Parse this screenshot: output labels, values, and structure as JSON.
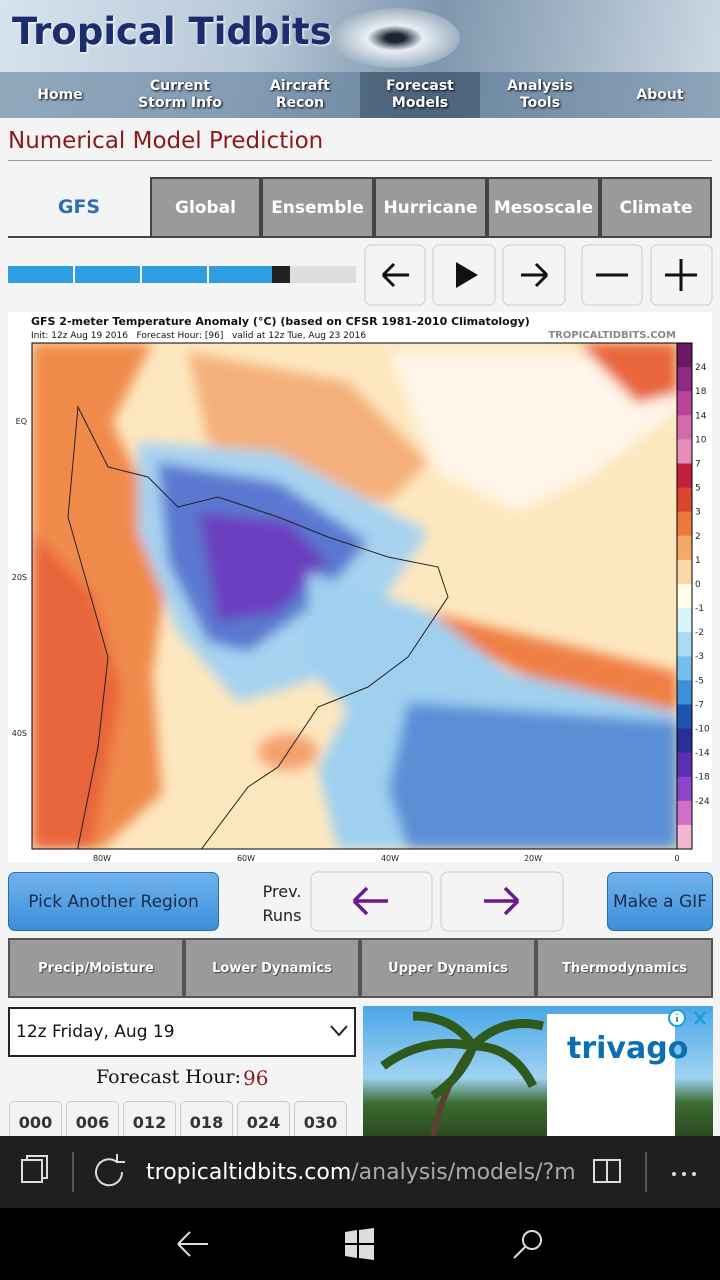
{
  "header": {
    "title": "Tropical Tidbits",
    "nav": [
      "Home",
      "Current Storm Info",
      "Aircraft Recon",
      "Forecast Models",
      "Analysis Tools",
      "About"
    ]
  },
  "page_title": "Numerical Model Prediction",
  "model_tabs": [
    "GFS",
    "Global",
    "Ensemble",
    "Hurricane",
    "Mesoscale",
    "Climate"
  ],
  "map": {
    "title": "GFS 2-meter Temperature Anomaly (°C) (based on CFSR 1981-2010 Climatology)",
    "subtitle": "Init: 12z Aug 19 2016   Forecast Hour: [96]   valid at 12z Tue, Aug 23 2016",
    "credit": "TROPICALTIDBITS.COM",
    "lat_labels": [
      "EQ",
      "20S",
      "40S"
    ],
    "lon_labels": [
      "80W",
      "60W",
      "40W",
      "20W",
      "0"
    ],
    "colorbar_labels": [
      "24",
      "18",
      "14",
      "10",
      "7",
      "5",
      "3",
      "2",
      "1",
      "0",
      "-1",
      "-2",
      "-3",
      "-5",
      "-7",
      "-10",
      "-14",
      "-18",
      "-24"
    ]
  },
  "buttons": {
    "pick_region": "Pick Another Region",
    "prev_runs": "Prev. Runs",
    "make_gif": "Make a GIF"
  },
  "category_tabs": [
    "Precip/Moisture",
    "Lower Dynamics",
    "Upper Dynamics",
    "Thermodynamics"
  ],
  "run_select": "12z Friday, Aug 19",
  "forecast_hour": {
    "label": "Forecast Hour:",
    "value": "96"
  },
  "hour_buttons": [
    "000",
    "006",
    "012",
    "018",
    "024",
    "030"
  ],
  "ad": {
    "brand": "trivago"
  },
  "browser": {
    "url_host": "tropicaltidbits.com",
    "url_path": "/analysis/models/?mode"
  }
}
